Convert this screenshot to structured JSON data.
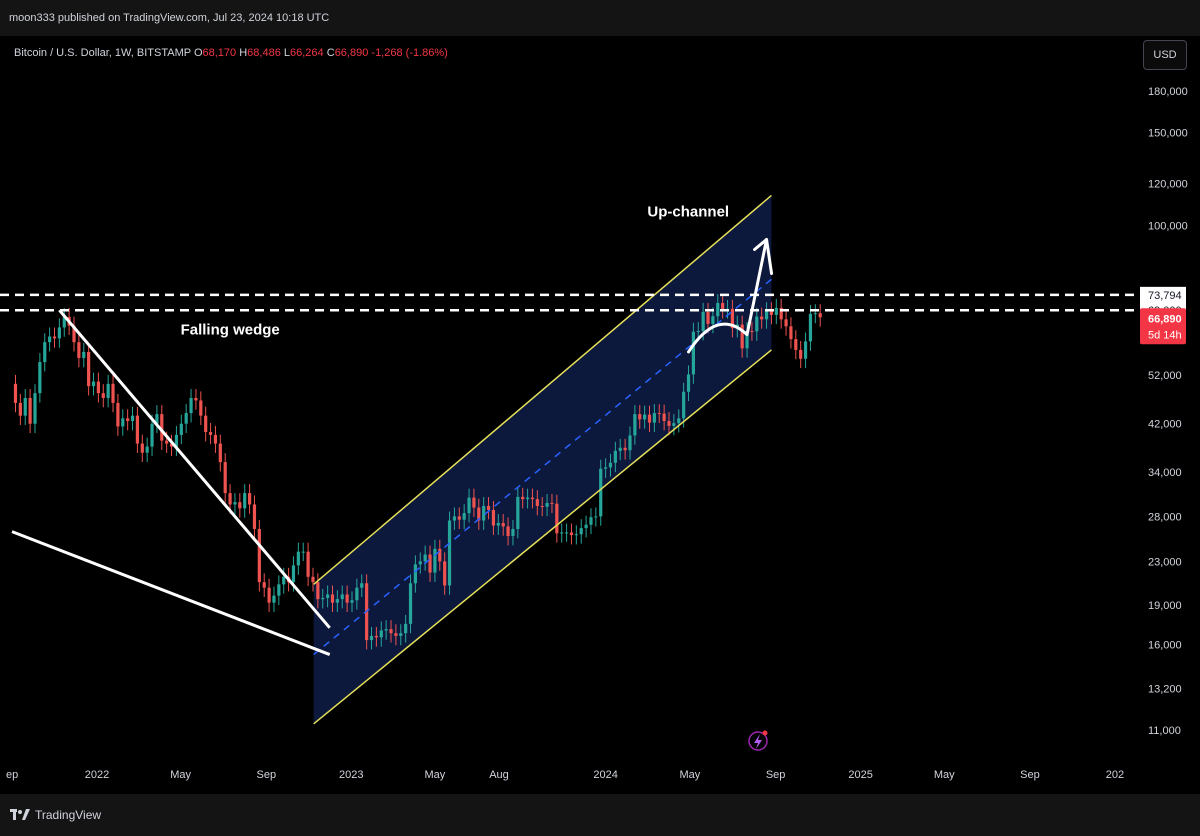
{
  "header": {
    "publisher_line": "moon333 published on TradingView.com, Jul 23, 2024 10:18 UTC"
  },
  "legend": {
    "symbol": "Bitcoin / U.S. Dollar, 1W, BITSTAMP",
    "open_label": "O",
    "open": "68,170",
    "high_label": "H",
    "high": "68,486",
    "low_label": "L",
    "low": "66,264",
    "close_label": "C",
    "close": "66,890",
    "change": "-1,268 (-1.86%)"
  },
  "currency_button": "USD",
  "footer": {
    "brand": "TradingView"
  },
  "colors": {
    "up": "#26a69a",
    "down": "#ef5350",
    "channel_fill": "#0e1a3f",
    "channel_line": "#e6e05a",
    "midline": "#2962ff",
    "price_badge": "#f23645"
  },
  "chart_data": {
    "type": "candlestick",
    "scale": "log",
    "ylim": [
      10000,
      205000
    ],
    "y_ticks": [
      180000,
      150000,
      120000,
      100000,
      52000,
      42000,
      34000,
      28000,
      23000,
      19000,
      16000,
      13200,
      11000
    ],
    "y_tick_labels": [
      "180,000",
      "150,000",
      "120,000",
      "100,000",
      "52,000",
      "42,000",
      "34,000",
      "28,000",
      "23,000",
      "19,000",
      "16,000",
      "13,200",
      "11,000"
    ],
    "x_tick_labels": [
      "ep",
      "2022",
      "May",
      "Sep",
      "2023",
      "May",
      "Aug",
      "2024",
      "May",
      "Sep",
      "2025",
      "May",
      "Sep",
      "202"
    ],
    "x_tick_dates": [
      "2021-09-01",
      "2022-01-01",
      "2022-05-01",
      "2022-09-01",
      "2023-01-01",
      "2023-05-01",
      "2023-08-01",
      "2024-01-01",
      "2024-05-01",
      "2024-09-01",
      "2025-01-01",
      "2025-05-01",
      "2025-09-01",
      "2026-01-01"
    ],
    "price_levels": [
      {
        "value": 73794,
        "label": "73,794"
      },
      {
        "value": 69000,
        "label": "69,000"
      }
    ],
    "last_price": {
      "value": 66890,
      "label": "66,890",
      "countdown": "5d 14h"
    },
    "annotations": [
      {
        "text": "Falling wedge",
        "date": "2022-05-01",
        "price": 62000
      },
      {
        "text": "Up-channel",
        "date": "2024-03-01",
        "price": 104000
      }
    ],
    "wedge_lines": [
      {
        "from": [
          "2021-11-08",
          69000
        ],
        "to": [
          "2022-12-01",
          17200
        ]
      },
      {
        "from": [
          "2021-09-01",
          26200
        ],
        "to": [
          "2022-12-01",
          15300
        ]
      }
    ],
    "channel": {
      "upper": {
        "from": [
          "2022-11-08",
          20800
        ],
        "to": [
          "2024-08-26",
          114000
        ]
      },
      "lower": {
        "from": [
          "2022-11-08",
          11300
        ],
        "to": [
          "2024-08-26",
          58000
        ]
      },
      "mid": {
        "from": [
          "2022-11-08",
          15300
        ],
        "to": [
          "2024-08-26",
          79000
        ]
      }
    },
    "projection_arrow": [
      [
        "2024-04-29",
        57500
      ],
      [
        "2024-06-10",
        70000
      ],
      [
        "2024-07-22",
        62000
      ],
      [
        "2024-08-19",
        94000
      ]
    ],
    "weekly_closes": [
      {
        "start": "2021-09-06",
        "open": 50000,
        "closes": [
          46000,
          43500,
          47000,
          42000,
          48000,
          55000,
          60000,
          61500,
          61000,
          64000,
          67000,
          64500,
          60000,
          56000,
          57500,
          49500,
          50500,
          48000,
          47000,
          50000,
          46000,
          41500,
          43000,
          42500,
          43500,
          38500,
          37000,
          38000,
          42000,
          43800,
          39000,
          38500,
          38000,
          40000,
          42000,
          44000,
          47000,
          46500,
          43500,
          40500,
          40000,
          38500,
          35500,
          31000,
          29500,
          29800,
          29000,
          31000,
          29500,
          26500,
          21000,
          20500,
          19200,
          19800,
          20800,
          21500,
          21000,
          22600,
          24000,
          24000,
          21500,
          21000,
          19500,
          19600,
          19900,
          19200,
          19500,
          19900,
          19200,
          19400,
          20500,
          20900,
          16300,
          16600,
          16500,
          17000,
          17100,
          16800,
          16600,
          16800,
          17500,
          20900,
          22700,
          23000,
          23700,
          21900,
          24300,
          23000,
          20700,
          27500,
          28000,
          27600,
          28400,
          30400,
          29100,
          27500,
          29300,
          28800,
          26900,
          27200,
          26800,
          25700,
          26500,
          30500,
          30200,
          30400,
          30200,
          29300,
          29200,
          29700,
          29600,
          26000,
          26100,
          26100,
          25800,
          25900,
          26600,
          27000,
          27900,
          28000,
          34500,
          34700,
          35400,
          37300,
          37800,
          37400,
          39900,
          43800,
          42800,
          43700,
          42200,
          44000,
          43900,
          42500,
          41600,
          42100,
          43000,
          48300,
          52100,
          62800,
          63000,
          68500,
          65000,
          67200,
          71200,
          69300,
          69400,
          63800,
          64800,
          58400,
          63000,
          62900,
          67100,
          66300,
          68700,
          67600,
          69700,
          66300,
          64300,
          60800,
          58000,
          55800,
          60200,
          67900,
          68100,
          66890
        ]
      }
    ]
  }
}
